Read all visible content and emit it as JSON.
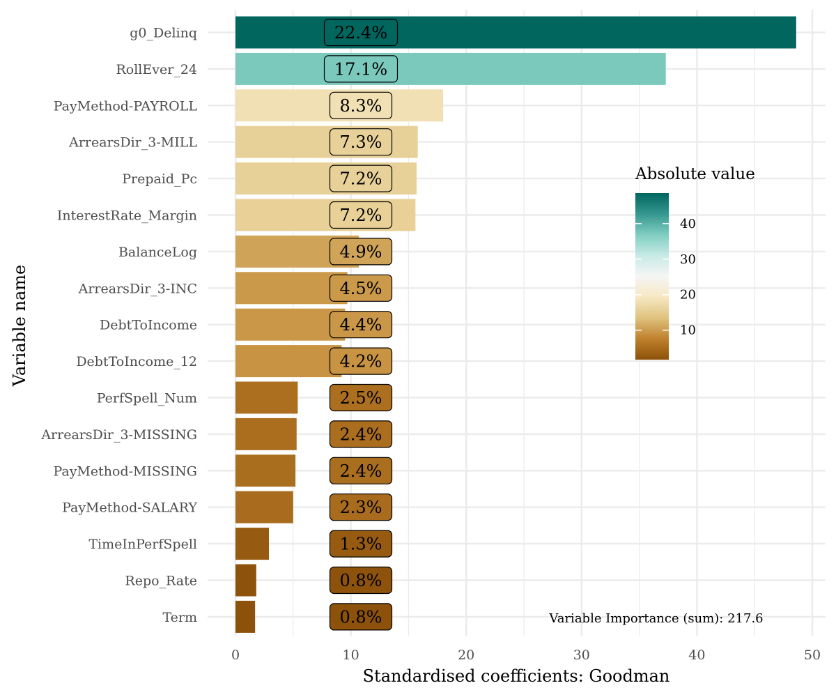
{
  "chart_data": {
    "type": "bar",
    "orientation": "horizontal",
    "xlabel": "Standardised coefficients: Goodman",
    "ylabel": "Variable name",
    "xlim": [
      0,
      50
    ],
    "x_ticks": [
      0,
      10,
      20,
      30,
      40,
      50
    ],
    "grid": true,
    "categories": [
      "g0_Delinq",
      "RollEver_24",
      "PayMethod-PAYROLL",
      "ArrearsDir_3-MILL",
      "Prepaid_Pc",
      "InterestRate_Margin",
      "BalanceLog",
      "ArrearsDir_3-INC",
      "DebtToIncome",
      "DebtToIncome_12",
      "PerfSpell_Num",
      "ArrearsDir_3-MISSING",
      "PayMethod-MISSING",
      "PayMethod-SALARY",
      "TimeInPerfSpell",
      "Repo_Rate",
      "Term"
    ],
    "values": [
      48.6,
      37.3,
      18.0,
      15.8,
      15.7,
      15.6,
      10.7,
      9.7,
      9.5,
      9.2,
      5.4,
      5.3,
      5.2,
      5.0,
      2.9,
      1.8,
      1.7
    ],
    "data_labels": [
      "22.4%",
      "17.1%",
      "8.3%",
      "7.3%",
      "7.2%",
      "7.2%",
      "4.9%",
      "4.5%",
      "4.4%",
      "4.2%",
      "2.5%",
      "2.4%",
      "2.4%",
      "2.3%",
      "1.3%",
      "0.8%",
      "0.8%"
    ],
    "legend": {
      "title": "Absolute value",
      "ticks": [
        10,
        20,
        30,
        40
      ],
      "range": [
        1.7,
        48.6
      ],
      "colors": [
        "#8c510a",
        "#bf812d",
        "#dfc27d",
        "#f6e8c3",
        "#f5f5f5",
        "#c7eae5",
        "#80cdc1",
        "#35978f",
        "#01665e"
      ],
      "placement": "right"
    },
    "annotation": "Variable Importance (sum): 217.6"
  }
}
